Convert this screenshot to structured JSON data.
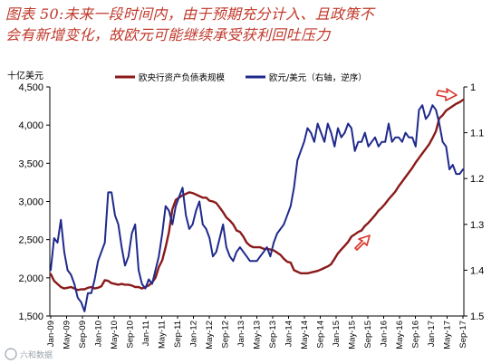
{
  "title": {
    "line1": "图表 50:未来一段时间内，由于预期充分计入、且政策不",
    "line2": "会有新增变化，故欧元可能继续承受获利回吐压力"
  },
  "watermark": "六和数据",
  "chart_data": {
    "type": "line",
    "left_axis": {
      "unit_label": "十亿美元",
      "ylim": [
        1500,
        4500
      ],
      "ticks": [
        "1,500",
        "2,000",
        "2,500",
        "3,000",
        "3,500",
        "4,000",
        "4,500"
      ]
    },
    "right_axis": {
      "ylim": [
        1.0,
        1.5
      ],
      "inverted": true,
      "ticks": [
        "1",
        "1.1",
        "1.2",
        "1.3",
        "1.4",
        "1.5"
      ]
    },
    "x_ticks": [
      "Jan-09",
      "May-09",
      "Sep-09",
      "Jan-10",
      "May-10",
      "Sep-10",
      "Jan-11",
      "May-11",
      "Sep-11",
      "Jan-12",
      "May-12",
      "Sep-12",
      "Jan-13",
      "May-13",
      "Sep-13",
      "Jan-14",
      "May-14",
      "Sep-14",
      "Jan-15",
      "May-15",
      "Sep-15",
      "Jan-16",
      "May-16",
      "Sep-16",
      "Jan-17",
      "May-17",
      "Sep-17"
    ],
    "legend": {
      "placement": "top"
    },
    "series": [
      {
        "name": "欧央行资产负债表规模",
        "axis": "left",
        "color": "#8b1a1a",
        "values": [
          2050,
          1960,
          1920,
          1880,
          1860,
          1870,
          1880,
          1860,
          1840,
          1850,
          1850,
          1870,
          1880,
          1860,
          1870,
          1890,
          1970,
          1960,
          1930,
          1920,
          1910,
          1920,
          1910,
          1910,
          1900,
          1880,
          1880,
          1860,
          1880,
          1900,
          1940,
          2000,
          2140,
          2230,
          2400,
          2600,
          2900,
          3020,
          3050,
          3080,
          3100,
          3120,
          3110,
          3090,
          3070,
          3050,
          3050,
          3010,
          3000,
          2980,
          2920,
          2860,
          2790,
          2750,
          2700,
          2620,
          2600,
          2540,
          2460,
          2420,
          2400,
          2400,
          2400,
          2380,
          2380,
          2370,
          2360,
          2330,
          2300,
          2250,
          2210,
          2200,
          2100,
          2080,
          2060,
          2060,
          2060,
          2070,
          2080,
          2090,
          2110,
          2130,
          2150,
          2180,
          2250,
          2320,
          2370,
          2420,
          2470,
          2540,
          2570,
          2600,
          2620,
          2680,
          2720,
          2770,
          2820,
          2880,
          2920,
          2970,
          3030,
          3080,
          3130,
          3200,
          3260,
          3320,
          3380,
          3440,
          3510,
          3570,
          3630,
          3690,
          3750,
          3830,
          3920,
          4090,
          4130,
          4190,
          4220,
          4250,
          4280,
          4300,
          4330
        ]
      },
      {
        "name": "欧元/美元（右轴，逆序）",
        "axis": "right",
        "color": "#1f2a8c",
        "values": [
          1.4,
          1.33,
          1.34,
          1.29,
          1.36,
          1.4,
          1.41,
          1.43,
          1.46,
          1.47,
          1.49,
          1.45,
          1.45,
          1.42,
          1.38,
          1.36,
          1.34,
          1.23,
          1.23,
          1.28,
          1.3,
          1.35,
          1.39,
          1.37,
          1.32,
          1.3,
          1.4,
          1.43,
          1.44,
          1.42,
          1.43,
          1.4,
          1.37,
          1.32,
          1.26,
          1.27,
          1.3,
          1.26,
          1.24,
          1.22,
          1.28,
          1.31,
          1.3,
          1.27,
          1.25,
          1.3,
          1.31,
          1.33,
          1.37,
          1.36,
          1.33,
          1.3,
          1.35,
          1.37,
          1.38,
          1.36,
          1.35,
          1.36,
          1.37,
          1.38,
          1.38,
          1.38,
          1.37,
          1.36,
          1.35,
          1.37,
          1.34,
          1.32,
          1.31,
          1.3,
          1.28,
          1.26,
          1.22,
          1.16,
          1.14,
          1.12,
          1.09,
          1.1,
          1.12,
          1.08,
          1.1,
          1.12,
          1.08,
          1.1,
          1.13,
          1.09,
          1.11,
          1.1,
          1.08,
          1.09,
          1.14,
          1.12,
          1.12,
          1.1,
          1.13,
          1.12,
          1.11,
          1.13,
          1.12,
          1.12,
          1.08,
          1.12,
          1.11,
          1.11,
          1.12,
          1.1,
          1.11,
          1.11,
          1.13,
          1.05,
          1.04,
          1.07,
          1.06,
          1.04,
          1.05,
          1.08,
          1.12,
          1.13,
          1.18,
          1.17,
          1.19,
          1.19,
          1.18
        ]
      }
    ],
    "annotations": [
      {
        "kind": "arrow",
        "direction": "up-right",
        "color": "#d9342b"
      },
      {
        "kind": "arrow",
        "direction": "right",
        "color": "#d9342b"
      }
    ]
  }
}
